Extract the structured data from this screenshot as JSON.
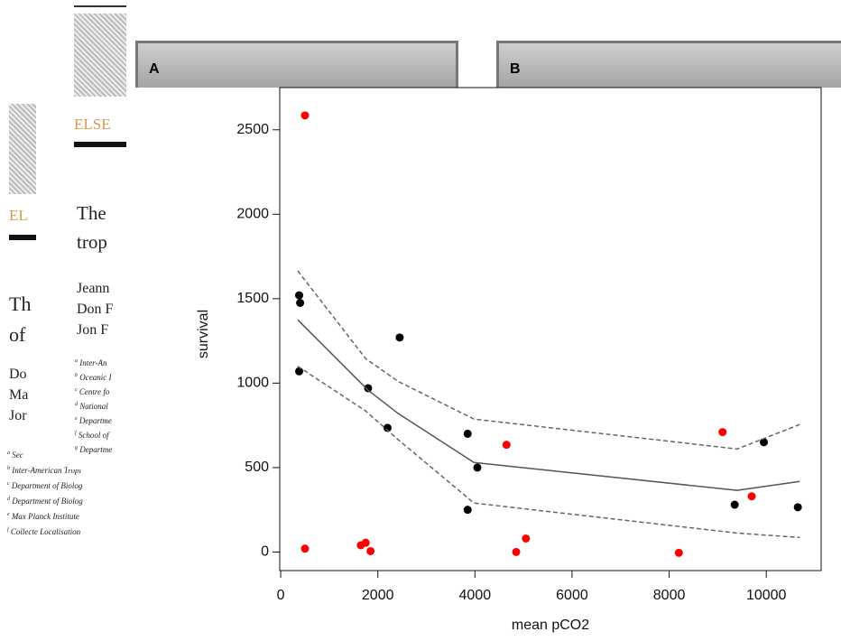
{
  "background": {
    "doc_front": {
      "publisher": "ELSE",
      "title_lines": [
        "The",
        "trop"
      ],
      "authors": [
        "Jeann",
        "Don F",
        "Jon F"
      ],
      "affiliations": [
        {
          "mark": "a",
          "text": "Inter-An"
        },
        {
          "mark": "b",
          "text": "Oceanic I"
        },
        {
          "mark": "c",
          "text": "Centre fo"
        },
        {
          "mark": "d",
          "text": "National"
        },
        {
          "mark": "e",
          "text": "Departme"
        },
        {
          "mark": "f",
          "text": "School of"
        },
        {
          "mark": "g",
          "text": "Departme"
        }
      ]
    },
    "doc_back": {
      "publisher": "EL",
      "title_lines": [
        "Th",
        "of"
      ],
      "authors": [
        "Do",
        "Ma",
        "Jor"
      ],
      "affiliations": [
        {
          "mark": "a",
          "text": "Sec"
        },
        {
          "mark": "b",
          "text": "Inter-American Tropi"
        },
        {
          "mark": "c",
          "text": "Department of Biolog"
        },
        {
          "mark": "d",
          "text": "Department of Biolog"
        },
        {
          "mark": "e",
          "text": "Max Planck Institute"
        },
        {
          "mark": "f",
          "text": "Collecte Localisation"
        }
      ]
    },
    "panels": [
      "A",
      "B"
    ]
  },
  "chart_data": {
    "type": "scatter",
    "x_label": "mean pCO2",
    "y_label": "survival",
    "xlim": [
      -20,
      11130
    ],
    "ylim": [
      -110,
      2750
    ],
    "xticks": [
      0,
      2000,
      4000,
      6000,
      8000,
      10000
    ],
    "yticks": [
      0,
      500,
      1000,
      1500,
      2000,
      2500
    ],
    "series": [
      {
        "kind": "points",
        "color": "#000000",
        "x": [
          380,
          400,
          380,
          1800,
          2200,
          2450,
          3850,
          3850,
          4050,
          9350,
          9950,
          10650
        ],
        "values": [
          1520,
          1475,
          1070,
          970,
          735,
          1270,
          700,
          250,
          500,
          280,
          650,
          265
        ]
      },
      {
        "kind": "points",
        "color": "#ff0000",
        "x": [
          500,
          500,
          1650,
          1750,
          1850,
          4650,
          4850,
          5050,
          8200,
          9100,
          9700
        ],
        "values": [
          2585,
          20,
          40,
          55,
          5,
          635,
          0,
          80,
          -5,
          710,
          330
        ]
      },
      {
        "kind": "line",
        "color": "#555555",
        "dashed": false,
        "x": [
          350,
          1800,
          2420,
          3980,
          9400,
          10690
        ],
        "values": [
          1375,
          958,
          820,
          530,
          365,
          418
        ]
      },
      {
        "kind": "line",
        "color": "#666666",
        "dashed": true,
        "x": [
          350,
          1750,
          2420,
          3980,
          9400,
          10690
        ],
        "values": [
          1665,
          1145,
          1010,
          787,
          610,
          755
        ]
      },
      {
        "kind": "line",
        "color": "#666666",
        "dashed": true,
        "x": [
          350,
          1750,
          2420,
          3980,
          9400,
          10690
        ],
        "values": [
          1100,
          835,
          665,
          290,
          112,
          86
        ]
      }
    ]
  }
}
